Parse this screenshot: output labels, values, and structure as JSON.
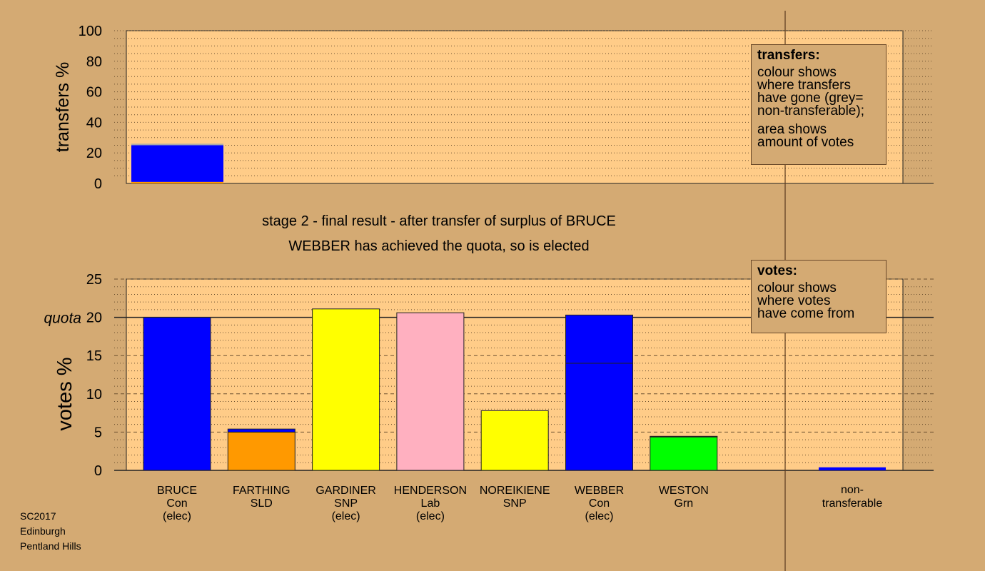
{
  "footer": [
    "SC2017",
    "Edinburgh",
    "Pentland Hills"
  ],
  "legend_transfers": {
    "title": "transfers:",
    "lines": [
      "colour shows",
      "where transfers",
      "have gone (grey=",
      "non-transferable);"
    ],
    "lines2": [
      "area shows",
      "amount of votes"
    ]
  },
  "legend_votes": {
    "title": "votes:",
    "lines": [
      "colour shows",
      "where votes",
      "have come from"
    ]
  },
  "stage_text": [
    "stage 2 - final result - after transfer of surplus of BRUCE",
    "WEBBER has achieved the quota, so is elected"
  ],
  "colors": {
    "background": "#d4aa73",
    "plot_background": "#ffcc88",
    "Con": "#0000ff",
    "SLD": "#ff9900",
    "SNP": "#ffff00",
    "Lab": "#ffb0c0",
    "Grn": "#00ff00",
    "grey": "#aaaaaa"
  },
  "chart_data": [
    {
      "type": "bar",
      "ylabel": "transfers %",
      "ylim": [
        0,
        100
      ],
      "yticks": [
        0,
        20,
        40,
        60,
        80,
        100
      ],
      "bars": [
        {
          "segments": [
            {
              "value": 1,
              "color": "#ff9900"
            },
            {
              "value": 24,
              "color": "#0000ff"
            },
            {
              "value": 1,
              "color": "#aaaaaa"
            }
          ]
        }
      ]
    },
    {
      "type": "bar",
      "ylabel": "votes %",
      "ylim": [
        0,
        25
      ],
      "yticks": [
        0,
        5,
        10,
        15,
        20,
        25
      ],
      "quota": 20,
      "quota_label": "quota",
      "categories": [
        {
          "name": "BRUCE",
          "party": "Con",
          "status": "(elec)"
        },
        {
          "name": "FARTHING",
          "party": "SLD",
          "status": ""
        },
        {
          "name": "GARDINER",
          "party": "SNP",
          "status": "(elec)"
        },
        {
          "name": "HENDERSON",
          "party": "Lab",
          "status": "(elec)"
        },
        {
          "name": "NOREIKIENE",
          "party": "SNP",
          "status": ""
        },
        {
          "name": "WEBBER",
          "party": "Con",
          "status": "(elec)"
        },
        {
          "name": "WESTON",
          "party": "Grn",
          "status": ""
        }
      ],
      "bars": [
        {
          "segments": [
            {
              "value": 20.0,
              "color": "#0000ff"
            }
          ]
        },
        {
          "segments": [
            {
              "value": 5.0,
              "color": "#ff9900"
            },
            {
              "value": 0.4,
              "color": "#0000ff"
            }
          ]
        },
        {
          "segments": [
            {
              "value": 21.1,
              "color": "#ffff00"
            }
          ]
        },
        {
          "segments": [
            {
              "value": 20.6,
              "color": "#ffb0c0"
            }
          ]
        },
        {
          "segments": [
            {
              "value": 7.8,
              "color": "#ffff00"
            }
          ]
        },
        {
          "segments": [
            {
              "value": 14.0,
              "color": "#0000ff"
            },
            {
              "value": 6.3,
              "color": "#0000ff"
            }
          ]
        },
        {
          "segments": [
            {
              "value": 4.4,
              "color": "#00ff00"
            },
            {
              "value": 0.05,
              "color": "#0000ff"
            }
          ]
        }
      ],
      "nontransferable": {
        "label": [
          "non-",
          "transferable"
        ],
        "segments": [
          {
            "value": 0.4,
            "color": "#0000ff"
          }
        ]
      }
    }
  ]
}
